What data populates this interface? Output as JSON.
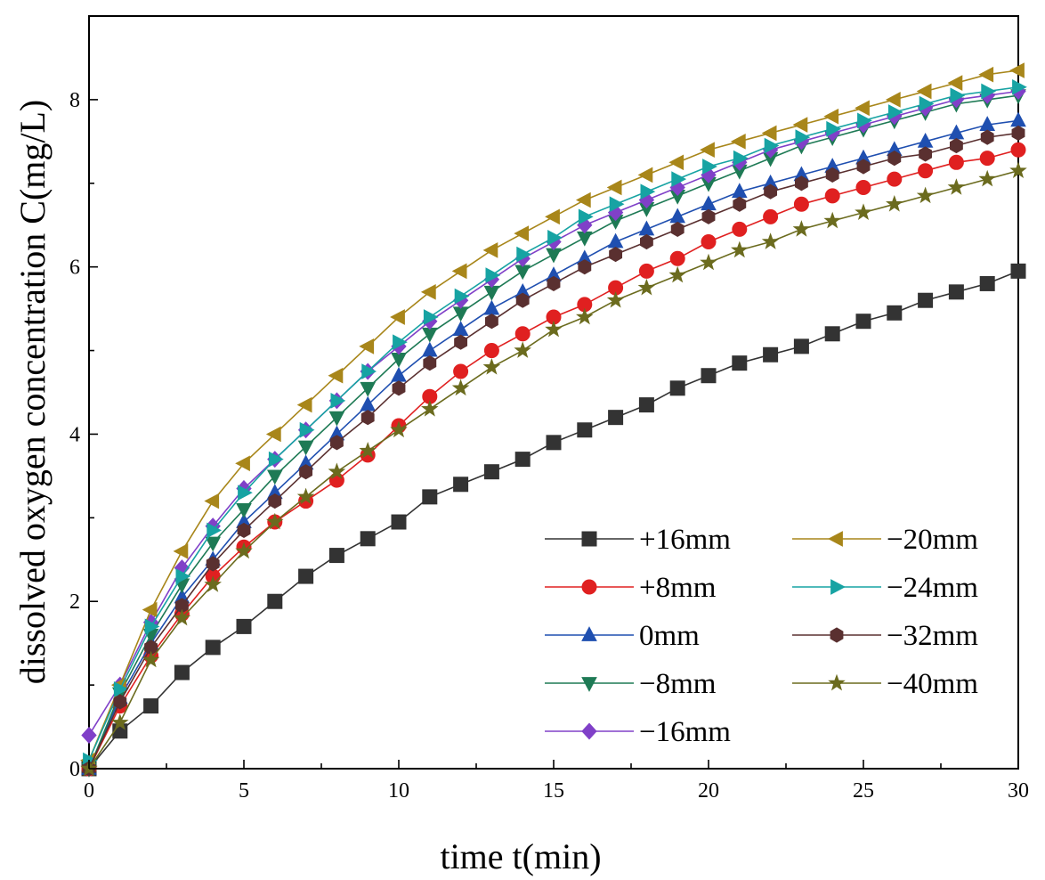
{
  "chart_data": {
    "type": "line",
    "title": "",
    "xlabel": "time  t(min)",
    "ylabel": "dissolved oxygen concentration   C(mg/L)",
    "xlim": [
      0,
      30
    ],
    "ylim": [
      0,
      9
    ],
    "xticks": [
      0,
      5,
      10,
      15,
      20,
      25,
      30
    ],
    "xtick_labels": [
      "0",
      "5",
      "10",
      "15",
      "20",
      "25",
      "30"
    ],
    "yticks": [
      0,
      2,
      4,
      6,
      8
    ],
    "ytick_labels": [
      "0",
      "2",
      "4",
      "6",
      "8"
    ],
    "grid": false,
    "legend_position": "bottom-right",
    "x": [
      0,
      1,
      2,
      3,
      4,
      5,
      6,
      7,
      8,
      9,
      10,
      11,
      12,
      13,
      14,
      15,
      16,
      17,
      18,
      19,
      20,
      21,
      22,
      23,
      24,
      25,
      26,
      27,
      28,
      29,
      30
    ],
    "series": [
      {
        "name": "+16mm",
        "color": "#333333",
        "marker": "square",
        "values": [
          0,
          0.45,
          0.75,
          1.15,
          1.45,
          1.7,
          2.0,
          2.3,
          2.55,
          2.75,
          2.95,
          3.25,
          3.4,
          3.55,
          3.7,
          3.9,
          4.05,
          4.2,
          4.35,
          4.55,
          4.7,
          4.85,
          4.95,
          5.05,
          5.2,
          5.35,
          5.45,
          5.6,
          5.7,
          5.8,
          5.95
        ]
      },
      {
        "name": "+8mm",
        "color": "#e02020",
        "marker": "circle",
        "values": [
          0,
          0.75,
          1.35,
          1.85,
          2.3,
          2.65,
          2.95,
          3.2,
          3.45,
          3.75,
          4.1,
          4.45,
          4.75,
          5.0,
          5.2,
          5.4,
          5.55,
          5.75,
          5.95,
          6.1,
          6.3,
          6.45,
          6.6,
          6.75,
          6.85,
          6.95,
          7.05,
          7.15,
          7.25,
          7.3,
          7.4
        ]
      },
      {
        "name": "0mm",
        "color": "#1f4fb0",
        "marker": "triangle-up",
        "values": [
          0,
          0.85,
          1.5,
          2.05,
          2.5,
          2.95,
          3.3,
          3.65,
          4.0,
          4.35,
          4.7,
          5.0,
          5.25,
          5.5,
          5.7,
          5.9,
          6.1,
          6.3,
          6.45,
          6.6,
          6.75,
          6.9,
          7.0,
          7.1,
          7.2,
          7.3,
          7.4,
          7.5,
          7.6,
          7.7,
          7.75
        ]
      },
      {
        "name": "−8mm",
        "color": "#1e7a55",
        "marker": "triangle-down",
        "values": [
          0,
          0.9,
          1.6,
          2.2,
          2.7,
          3.1,
          3.5,
          3.85,
          4.2,
          4.55,
          4.9,
          5.2,
          5.45,
          5.7,
          5.95,
          6.15,
          6.35,
          6.55,
          6.7,
          6.85,
          7.0,
          7.15,
          7.3,
          7.45,
          7.55,
          7.65,
          7.75,
          7.85,
          7.95,
          8.0,
          8.05
        ]
      },
      {
        "name": "−16mm",
        "color": "#8040c8",
        "marker": "diamond",
        "values": [
          0.4,
          1.0,
          1.75,
          2.4,
          2.9,
          3.35,
          3.7,
          4.05,
          4.4,
          4.75,
          5.05,
          5.35,
          5.6,
          5.85,
          6.1,
          6.3,
          6.5,
          6.65,
          6.8,
          6.95,
          7.1,
          7.25,
          7.4,
          7.5,
          7.6,
          7.7,
          7.8,
          7.9,
          8.0,
          8.05,
          8.1
        ]
      },
      {
        "name": "−20mm",
        "color": "#a8861a",
        "marker": "triangle-left",
        "values": [
          0.1,
          1.0,
          1.9,
          2.6,
          3.2,
          3.65,
          4.0,
          4.35,
          4.7,
          5.05,
          5.4,
          5.7,
          5.95,
          6.2,
          6.4,
          6.6,
          6.8,
          6.95,
          7.1,
          7.25,
          7.4,
          7.5,
          7.6,
          7.7,
          7.8,
          7.9,
          8.0,
          8.1,
          8.2,
          8.3,
          8.35
        ]
      },
      {
        "name": "−24mm",
        "color": "#17a3a3",
        "marker": "triangle-right",
        "values": [
          0.1,
          0.95,
          1.7,
          2.3,
          2.85,
          3.3,
          3.7,
          4.05,
          4.4,
          4.75,
          5.1,
          5.4,
          5.65,
          5.9,
          6.15,
          6.35,
          6.6,
          6.75,
          6.9,
          7.05,
          7.2,
          7.3,
          7.45,
          7.55,
          7.65,
          7.75,
          7.85,
          7.95,
          8.05,
          8.1,
          8.15
        ]
      },
      {
        "name": "−32mm",
        "color": "#5a3030",
        "marker": "hexagon",
        "values": [
          0,
          0.8,
          1.45,
          1.95,
          2.45,
          2.85,
          3.2,
          3.55,
          3.9,
          4.2,
          4.55,
          4.85,
          5.1,
          5.35,
          5.6,
          5.8,
          6.0,
          6.15,
          6.3,
          6.45,
          6.6,
          6.75,
          6.9,
          7.0,
          7.1,
          7.2,
          7.3,
          7.35,
          7.45,
          7.55,
          7.6
        ]
      },
      {
        "name": "−40mm",
        "color": "#6b6b1e",
        "marker": "star",
        "values": [
          0,
          0.55,
          1.3,
          1.8,
          2.2,
          2.6,
          2.95,
          3.25,
          3.55,
          3.8,
          4.05,
          4.3,
          4.55,
          4.8,
          5.0,
          5.25,
          5.4,
          5.6,
          5.75,
          5.9,
          6.05,
          6.2,
          6.3,
          6.45,
          6.55,
          6.65,
          6.75,
          6.85,
          6.95,
          7.05,
          7.15
        ]
      }
    ]
  }
}
